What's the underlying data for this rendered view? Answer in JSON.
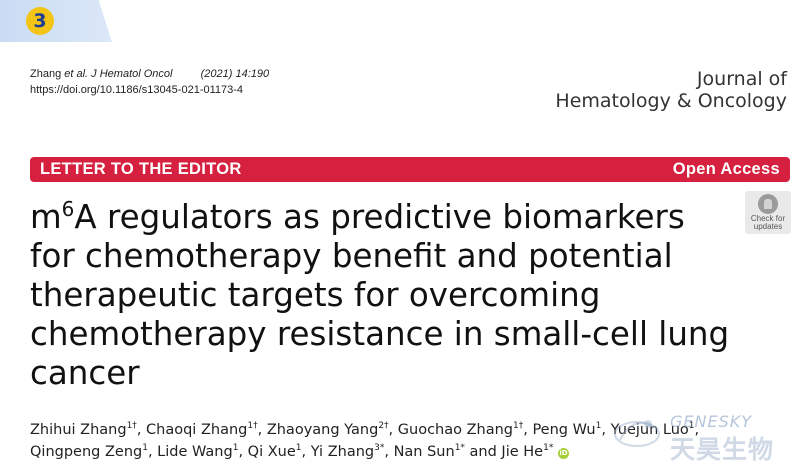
{
  "slide": {
    "number": "3"
  },
  "citation": {
    "author": "Zhang",
    "etal": "et al. J Hematol Oncol",
    "year_vol": "(2021) 14:190",
    "doi": "https://doi.org/10.1186/s13045-021-01173-4"
  },
  "journal": {
    "line1": "Journal of",
    "line2": "Hematology & Oncology"
  },
  "article_bar": {
    "type": "LETTER TO THE EDITOR",
    "access": "Open Access",
    "color": "#d6203f"
  },
  "check_updates": {
    "line1": "Check for",
    "line2": "updates"
  },
  "title": {
    "prefix": "m",
    "superscript": "6",
    "line1_rest": "A regulators as predictive biomarkers",
    "line2": "for chemotherapy benefit and potential",
    "line3": "therapeutic targets for overcoming",
    "line4": "chemotherapy resistance in small-cell lung",
    "line5": "cancer"
  },
  "authors": [
    [
      {
        "name": "Zhihui Zhang",
        "sup": "1†",
        "sep": ", "
      },
      {
        "name": "Chaoqi Zhang",
        "sup": "1†",
        "sep": ", "
      },
      {
        "name": "Zhaoyang Yang",
        "sup": "2†",
        "sep": ", "
      },
      {
        "name": "Guochao Zhang",
        "sup": "1†",
        "sep": ", "
      },
      {
        "name": "Peng Wu",
        "sup": "1",
        "sep": ", "
      },
      {
        "name": "Yuejun Luo",
        "sup": "1",
        "sep": ", "
      }
    ],
    [
      {
        "name": "Qingpeng Zeng",
        "sup": "1",
        "sep": ", "
      },
      {
        "name": "Lide Wang",
        "sup": "1",
        "sep": ", "
      },
      {
        "name": "Qi Xue",
        "sup": "1",
        "sep": ", "
      },
      {
        "name": "Yi Zhang",
        "sup": "3*",
        "sep": ", "
      },
      {
        "name": "Nan Sun",
        "sup": "1*",
        "sep": " and "
      },
      {
        "name": "Jie He",
        "sup": "1*",
        "sep": ""
      }
    ]
  ],
  "watermark": {
    "en": "GENESKY",
    "cn": "天昊生物"
  }
}
